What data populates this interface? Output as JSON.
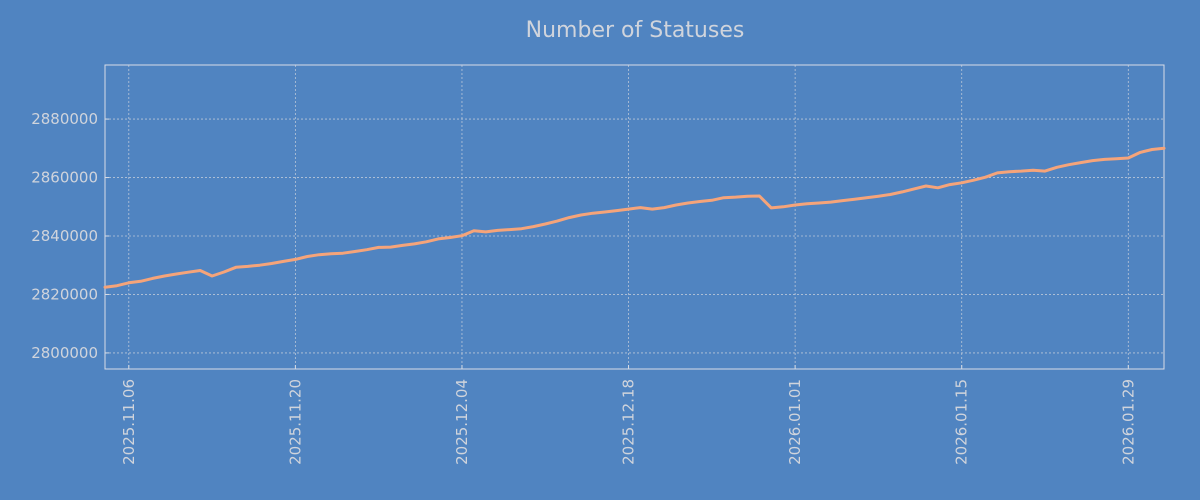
{
  "chart_data": {
    "type": "line",
    "title": "Number of Statuses",
    "xlabel": "",
    "ylabel": "",
    "grid": true,
    "xlim": [
      "2025-11-04",
      "2026-02-01"
    ],
    "ylim": [
      2794500,
      2898500
    ],
    "yticks": [
      2800000,
      2820000,
      2840000,
      2860000,
      2880000
    ],
    "xticks": [
      "2025-11-06",
      "2025-11-20",
      "2025-12-04",
      "2025-12-18",
      "2026-01-01",
      "2026-01-15",
      "2026-01-29"
    ],
    "xtick_labels": [
      "2025.11.06",
      "2025.11.20",
      "2025.12.04",
      "2025.12.18",
      "2026.01.01",
      "2026.01.15",
      "2026.01.29"
    ],
    "colors": {
      "background": "#5084c1",
      "series": "#f5a47a",
      "text": "#d0d4dc"
    },
    "series": [
      {
        "x": [
          "2025-11-04",
          "2025-11-05",
          "2025-11-06",
          "2025-11-07",
          "2025-11-08",
          "2025-11-09",
          "2025-11-10",
          "2025-11-11",
          "2025-11-12",
          "2025-11-13",
          "2025-11-14",
          "2025-11-15",
          "2025-11-16",
          "2025-11-17",
          "2025-11-18",
          "2025-11-19",
          "2025-11-20",
          "2025-11-21",
          "2025-11-22",
          "2025-11-23",
          "2025-11-24",
          "2025-11-25",
          "2025-11-26",
          "2025-11-27",
          "2025-11-28",
          "2025-11-29",
          "2025-11-30",
          "2025-12-01",
          "2025-12-02",
          "2025-12-03",
          "2025-12-04",
          "2025-12-05",
          "2025-12-06",
          "2025-12-07",
          "2025-12-08",
          "2025-12-09",
          "2025-12-10",
          "2025-12-11",
          "2025-12-12",
          "2025-12-13",
          "2025-12-14",
          "2025-12-15",
          "2025-12-16",
          "2025-12-17",
          "2025-12-18",
          "2025-12-19",
          "2025-12-20",
          "2025-12-21",
          "2025-12-22",
          "2025-12-23",
          "2025-12-24",
          "2025-12-25",
          "2025-12-26",
          "2025-12-27",
          "2025-12-28",
          "2025-12-29",
          "2025-12-30",
          "2025-12-31",
          "2026-01-01",
          "2026-01-02",
          "2026-01-03",
          "2026-01-04",
          "2026-01-05",
          "2026-01-06",
          "2026-01-07",
          "2026-01-08",
          "2026-01-09",
          "2026-01-10",
          "2026-01-11",
          "2026-01-12",
          "2026-01-13",
          "2026-01-14",
          "2026-01-15",
          "2026-01-16",
          "2026-01-17",
          "2026-01-18",
          "2026-01-19",
          "2026-01-20",
          "2026-01-21",
          "2026-01-22",
          "2026-01-23",
          "2026-01-24",
          "2026-01-25",
          "2026-01-26",
          "2026-01-27",
          "2026-01-28",
          "2026-01-29",
          "2026-01-30",
          "2026-01-31",
          "2026-02-01"
        ],
        "values": [
          2822500,
          2823000,
          2824000,
          2824500,
          2825500,
          2826300,
          2827000,
          2827600,
          2828200,
          2826300,
          2827700,
          2829300,
          2829600,
          2830000,
          2830600,
          2831300,
          2832000,
          2833000,
          2833600,
          2833900,
          2834100,
          2834700,
          2835300,
          2836100,
          2836200,
          2836800,
          2837300,
          2838000,
          2839000,
          2839500,
          2840100,
          2841800,
          2841400,
          2841900,
          2842200,
          2842500,
          2843200,
          2844100,
          2845100,
          2846300,
          2847200,
          2847800,
          2848200,
          2848700,
          2849200,
          2849700,
          2849200,
          2849700,
          2850600,
          2851300,
          2851800,
          2852200,
          2853100,
          2853300,
          2853600,
          2853700,
          2849600,
          2850000,
          2850600,
          2851000,
          2851300,
          2851600,
          2852100,
          2852600,
          2853100,
          2853600,
          2854200,
          2855100,
          2856100,
          2857100,
          2856500,
          2857600,
          2858200,
          2859100,
          2860100,
          2861600,
          2862000,
          2862200,
          2862500,
          2862200,
          2863500,
          2864400,
          2865100,
          2865800,
          2866200,
          2866400,
          2866700,
          2868600,
          2869600,
          2870000
        ]
      }
    ]
  }
}
